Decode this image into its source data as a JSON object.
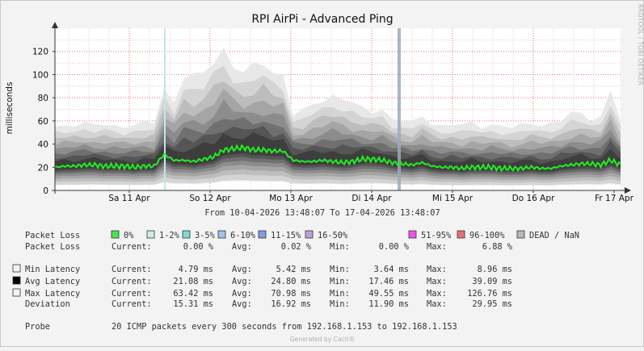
{
  "chart_data": {
    "type": "area",
    "title": "RPI AirPi - Advanced Ping",
    "ylabel": "milliseconds",
    "ylim": [
      0,
      140
    ],
    "yticks": [
      0,
      20,
      40,
      60,
      80,
      100,
      120
    ],
    "x_tick_labels": [
      "Sa 11 Apr",
      "So 12 Apr",
      "Mo 13 Apr",
      "Di 14 Apr",
      "Mi 15 Apr",
      "Do 16 Apr",
      "Fr 17 Apr"
    ],
    "grid": true,
    "side_text": "RRDTOOL / TOBI OETIKER",
    "subtitle": "From 10-04-2026 13:48:07 To 17-04-2026 13:48:07",
    "series": [
      {
        "name": "Avg Latency",
        "color": "#22ee22",
        "values": [
          20,
          21,
          21,
          22,
          22,
          21,
          21,
          21,
          20,
          21,
          21,
          31,
          26,
          26,
          25,
          27,
          29,
          35,
          36,
          37,
          35,
          35,
          34,
          34,
          26,
          25,
          25,
          26,
          25,
          24,
          25,
          27,
          27,
          26,
          24,
          23,
          22,
          24,
          21,
          20,
          20,
          19,
          20,
          20,
          20,
          19,
          19,
          19,
          20,
          19,
          19,
          21,
          22,
          23,
          23,
          22,
          26,
          22
        ]
      },
      {
        "name": "Max Latency",
        "values": [
          55,
          56,
          57,
          58,
          56,
          57,
          56,
          55,
          57,
          58,
          58,
          88,
          76,
          100,
          98,
          100,
          112,
          122,
          108,
          102,
          106,
          110,
          102,
          100,
          66,
          68,
          74,
          78,
          82,
          80,
          75,
          70,
          68,
          70,
          62,
          60,
          58,
          64,
          58,
          56,
          57,
          56,
          58,
          55,
          57,
          56,
          54,
          56,
          58,
          57,
          58,
          60,
          66,
          66,
          62,
          64,
          86,
          60
        ]
      }
    ],
    "legend": {
      "loss_label": "Packet Loss",
      "loss_items": [
        {
          "label": "0%",
          "color": "#4ce64c"
        },
        {
          "label": "1-2%",
          "color": "#cdeee8"
        },
        {
          "label": "3-5%",
          "color": "#82d8d6"
        },
        {
          "label": "6-10%",
          "color": "#9ec4ea"
        },
        {
          "label": "11-15%",
          "color": "#7f9ee0"
        },
        {
          "label": "16-50%",
          "color": "#c0a0d4"
        },
        {
          "label": "51-95%",
          "color": "#ec56ec"
        },
        {
          "label": "96-100%",
          "color": "#e87070"
        },
        {
          "label": "DEAD / NaN",
          "color": "#b8b8b8"
        }
      ],
      "stats": [
        {
          "label": "Packet Loss",
          "swatch": null,
          "current": "0.00 %",
          "avg": "0.02 %",
          "min": "0.00 %",
          "max": "6.88 %"
        },
        {
          "label": "Min Latency",
          "swatch": "#f0f4f0",
          "current": "4.79 ms",
          "avg": "5.42 ms",
          "min": "3.64 ms",
          "max": "8.96 ms"
        },
        {
          "label": "Avg Latency",
          "swatch": "#000000",
          "current": "21.08 ms",
          "avg": "24.80 ms",
          "min": "17.46 ms",
          "max": "39.09 ms"
        },
        {
          "label": "Max Latency",
          "swatch": "#f0f4f0",
          "current": "63.42 ms",
          "avg": "70.98 ms",
          "min": "49.55 ms",
          "max": "126.76 ms"
        },
        {
          "label": "Deviation",
          "swatch": null,
          "current": "15.31 ms",
          "avg": "16.92 ms",
          "min": "11.90 ms",
          "max": "29.95 ms"
        }
      ],
      "col_labels": {
        "current": "Current:",
        "avg": "Avg:",
        "min": "Min:",
        "max": "Max:"
      },
      "probe_label": "Probe",
      "probe_text": "20 ICMP packets every 300 seconds from 192.168.1.153 to 192.168.1.153"
    },
    "footer": "Generated by Cacti®"
  }
}
